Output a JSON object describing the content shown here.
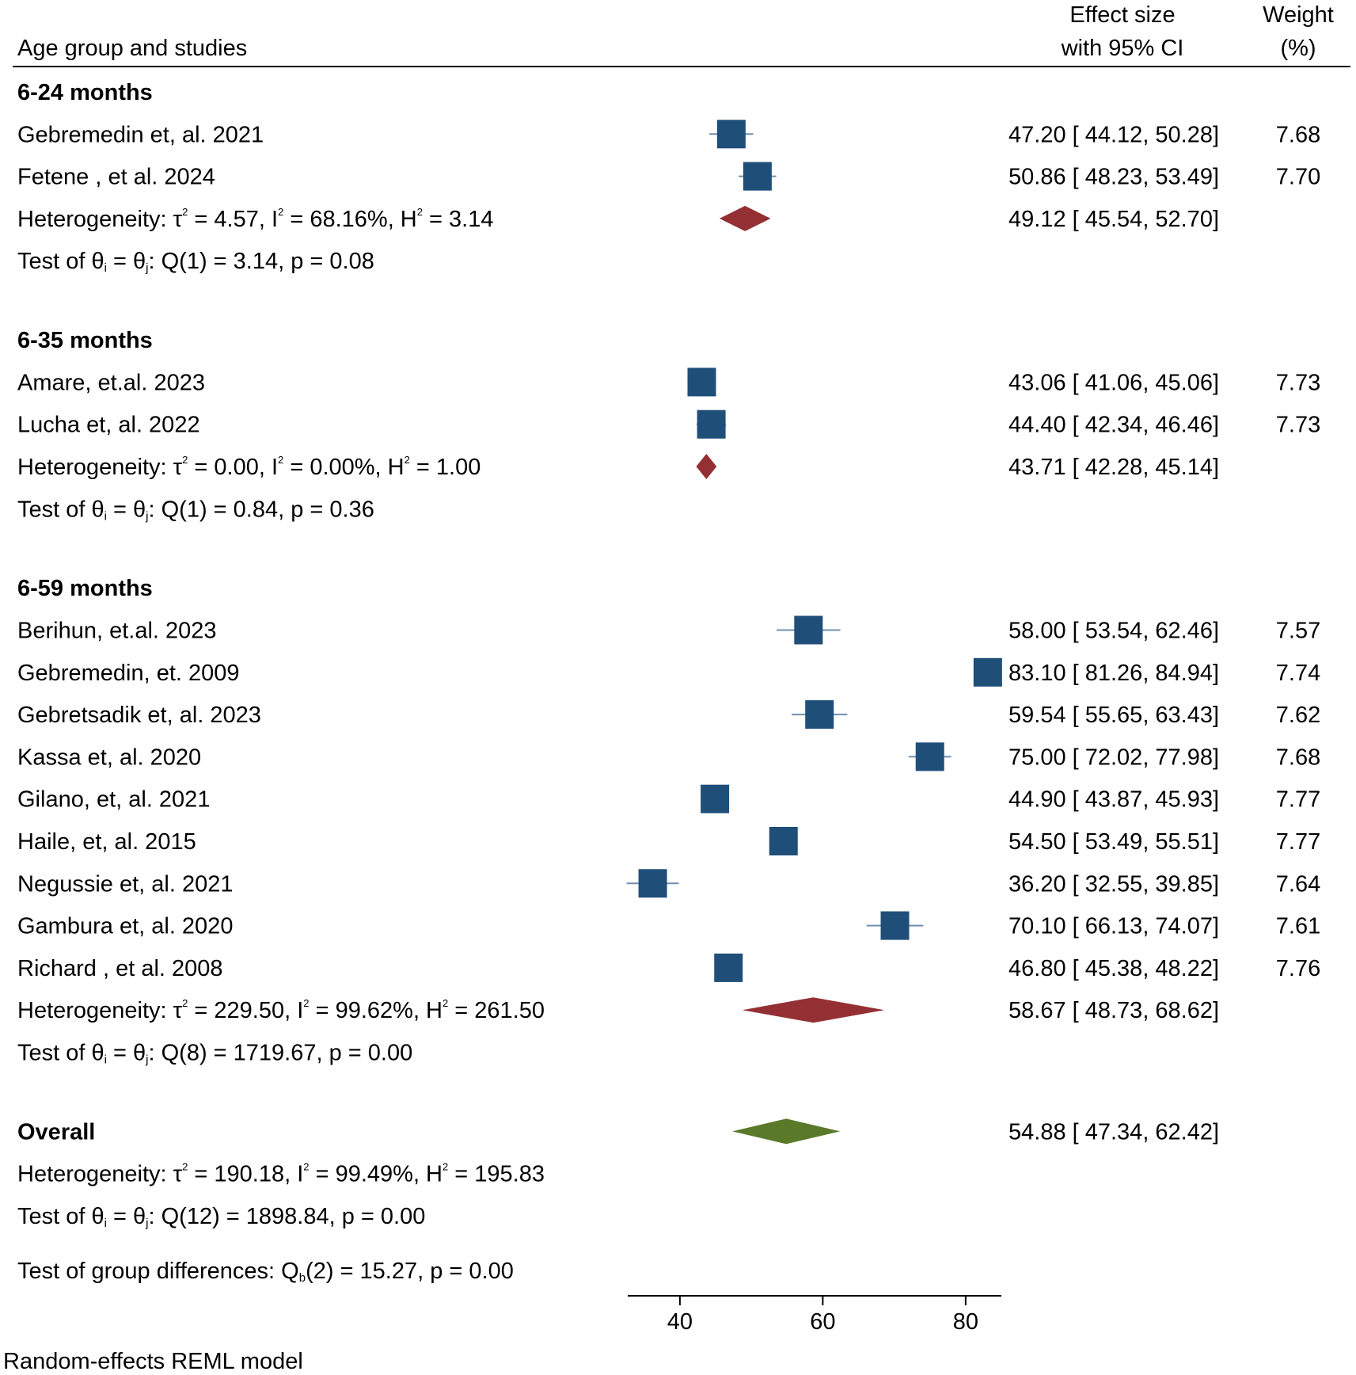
{
  "header": {
    "study_col": "Age group  and studies",
    "effect_col_line1": "Effect size",
    "effect_col_line2": "with 95% CI",
    "weight_col_line1": "Weight",
    "weight_col_line2": "(%)"
  },
  "footer": {
    "model_note": "Random-effects REML model"
  },
  "colors": {
    "study_box": "#1f4e79",
    "subgroup_diamond": "#943034",
    "overall_diamond": "#5a7a2a",
    "ci_line": "#6f8fb0"
  },
  "chart_data": {
    "type": "forest",
    "axis": {
      "xlim": [
        32.7,
        85
      ],
      "ticks": [
        40,
        60,
        80
      ],
      "tick_labels": [
        "40",
        "60",
        "80"
      ]
    },
    "groups": [
      {
        "label": "6-24 months",
        "studies": [
          {
            "name": "Gebremedin et, al. 2021",
            "es": 47.2,
            "lo": 44.12,
            "hi": 50.28,
            "ci_text": "47.20 [ 44.12,  50.28]",
            "weight": "7.68"
          },
          {
            "name": "Fetene , et al.   2024",
            "es": 50.86,
            "lo": 48.23,
            "hi": 53.49,
            "ci_text": "50.86 [ 48.23,  53.49]",
            "weight": "7.70"
          }
        ],
        "pooled": {
          "es": 49.12,
          "lo": 45.54,
          "hi": 52.7,
          "ci_text": "49.12 [ 45.54,  52.70]"
        },
        "het": {
          "prefix": "Heterogeneity: τ",
          "tau2": " = 4.57, I",
          "i2": " = 68.16%, H",
          "h2": " = 3.14"
        },
        "test": {
          "prefix": "Test of θ",
          "eq": " = θ",
          "rest": ": Q(1) = 3.14, p = 0.08"
        }
      },
      {
        "label": "6-35 months",
        "studies": [
          {
            "name": "Amare, et.al. 2023",
            "es": 43.06,
            "lo": 41.06,
            "hi": 45.06,
            "ci_text": "43.06 [ 41.06,  45.06]",
            "weight": "7.73"
          },
          {
            "name": "Lucha et, al.  2022",
            "es": 44.4,
            "lo": 42.34,
            "hi": 46.46,
            "ci_text": "44.40 [ 42.34,  46.46]",
            "weight": "7.73"
          }
        ],
        "pooled": {
          "es": 43.71,
          "lo": 42.28,
          "hi": 45.14,
          "ci_text": "43.71 [ 42.28,  45.14]"
        },
        "het": {
          "prefix": "Heterogeneity: τ",
          "tau2": " = 0.00, I",
          "i2": " = 0.00%, H",
          "h2": " = 1.00"
        },
        "test": {
          "prefix": "Test of θ",
          "eq": " = θ",
          "rest": ": Q(1) = 0.84, p = 0.36"
        }
      },
      {
        "label": "6-59 months",
        "studies": [
          {
            "name": "Berihun, et.al. 2023",
            "es": 58.0,
            "lo": 53.54,
            "hi": 62.46,
            "ci_text": "58.00 [ 53.54,  62.46]",
            "weight": "7.57"
          },
          {
            "name": "Gebremedin, et.   2009",
            "es": 83.1,
            "lo": 81.26,
            "hi": 84.94,
            "ci_text": "83.10 [ 81.26,  84.94]",
            "weight": "7.74"
          },
          {
            "name": "Gebretsadik et, al. 2023",
            "es": 59.54,
            "lo": 55.65,
            "hi": 63.43,
            "ci_text": "59.54 [ 55.65,  63.43]",
            "weight": "7.62"
          },
          {
            "name": "Kassa et, al.    2020",
            "es": 75.0,
            "lo": 72.02,
            "hi": 77.98,
            "ci_text": "75.00 [ 72.02,  77.98]",
            "weight": "7.68"
          },
          {
            "name": "Gilano, et, al.   2021",
            "es": 44.9,
            "lo": 43.87,
            "hi": 45.93,
            "ci_text": "44.90 [ 43.87,  45.93]",
            "weight": "7.77"
          },
          {
            "name": "Haile, et, al.   2015",
            "es": 54.5,
            "lo": 53.49,
            "hi": 55.51,
            "ci_text": "54.50 [ 53.49,  55.51]",
            "weight": "7.77"
          },
          {
            "name": "Negussie et, al. 2021",
            "es": 36.2,
            "lo": 32.55,
            "hi": 39.85,
            "ci_text": "36.20 [ 32.55,  39.85]",
            "weight": "7.64"
          },
          {
            "name": "Gambura et, al.  2020",
            "es": 70.1,
            "lo": 66.13,
            "hi": 74.07,
            "ci_text": "70.10 [ 66.13,  74.07]",
            "weight": "7.61"
          },
          {
            "name": "Richard , et al.   2008",
            "es": 46.8,
            "lo": 45.38,
            "hi": 48.22,
            "ci_text": "46.80 [ 45.38,  48.22]",
            "weight": "7.76"
          }
        ],
        "pooled": {
          "es": 58.67,
          "lo": 48.73,
          "hi": 68.62,
          "ci_text": "58.67 [ 48.73,  68.62]"
        },
        "het": {
          "prefix": "Heterogeneity: τ",
          "tau2": " = 229.50, I",
          "i2": " = 99.62%, H",
          "h2": " = 261.50"
        },
        "test": {
          "prefix": "Test of θ",
          "eq": " = θ",
          "rest": ": Q(8) = 1719.67, p = 0.00"
        }
      }
    ],
    "overall": {
      "label": "Overall",
      "es": 54.88,
      "lo": 47.34,
      "hi": 62.42,
      "ci_text": "54.88 [ 47.34,  62.42]",
      "het": {
        "prefix": "Heterogeneity: τ",
        "tau2": " = 190.18, I",
        "i2": " = 99.49%, H",
        "h2": " = 195.83"
      },
      "test": {
        "prefix": "Test of θ",
        "eq": " = θ",
        "rest": ": Q(12) = 1898.84, p = 0.00"
      }
    },
    "group_diff": {
      "prefix": "Test of group differences: Q",
      "rest": "(2) = 15.27, p = 0.00"
    }
  }
}
